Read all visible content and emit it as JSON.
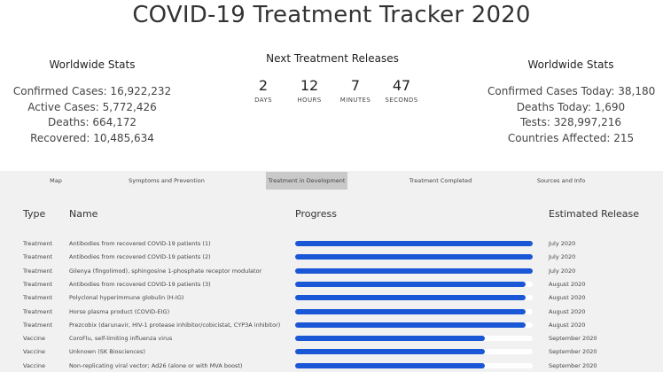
{
  "title": "COVID-19 Treatment Tracker 2020",
  "worldwide_left": {
    "heading": "Worldwide Stats",
    "lines": [
      "Confirmed Cases: 16,922,232",
      "Active Cases: 5,772,426",
      "Deaths: 664,172",
      "Recovered: 10,485,634"
    ]
  },
  "countdown": {
    "heading": "Next Treatment Releases",
    "units": [
      {
        "value": "2",
        "label": "DAYS"
      },
      {
        "value": "12",
        "label": "HOURS"
      },
      {
        "value": "7",
        "label": "MINUTES"
      },
      {
        "value": "47",
        "label": "SECONDS"
      }
    ]
  },
  "worldwide_right": {
    "heading": "Worldwide Stats",
    "lines": [
      "Confirmed Cases Today: 38,180",
      "Deaths Today: 1,690",
      "Tests: 328,997,216",
      "Countries Affected: 215"
    ]
  },
  "tabs": [
    "Map",
    "Symptoms and Prevention",
    "Treatment in Development",
    "Treatment Completed",
    "Sources and Info"
  ],
  "active_tab": "Treatment in Development",
  "table": {
    "headers": {
      "type": "Type",
      "name": "Name",
      "progress": "Progress",
      "release": "Estimated Release"
    },
    "rows": [
      {
        "type": "Treatment",
        "name": "Antibodies from recovered COVID-19 patients (1)",
        "progress": 1.0,
        "release": "July 2020"
      },
      {
        "type": "Treatment",
        "name": "Antibodies from recovered COVID-19 patients (2)",
        "progress": 1.0,
        "release": "July 2020"
      },
      {
        "type": "Treatment",
        "name": "Gilenya (fingolimod), sphingosine 1-phosphate receptor modulator",
        "progress": 1.0,
        "release": "July 2020"
      },
      {
        "type": "Treatment",
        "name": "Antibodies from recovered COVID-19 patients (3)",
        "progress": 0.97,
        "release": "August 2020"
      },
      {
        "type": "Treatment",
        "name": "Polyclonal hyperimmune globulin (H-IG)",
        "progress": 0.97,
        "release": "August 2020"
      },
      {
        "type": "Treatment",
        "name": "Horse plasma product (COVID-EIG)",
        "progress": 0.97,
        "release": "August 2020"
      },
      {
        "type": "Treatment",
        "name": "Prezcobix (darunavir, HIV-1 protease inhibitor/cobicistat, CYP3A inhibitor)",
        "progress": 0.97,
        "release": "August 2020"
      },
      {
        "type": "Vaccine",
        "name": "CoroFlu, self-limiting influenza virus",
        "progress": 0.8,
        "release": "September 2020"
      },
      {
        "type": "Vaccine",
        "name": "Unknown (SK Biosciences)",
        "progress": 0.8,
        "release": "September 2020"
      },
      {
        "type": "Vaccine",
        "name": "Non-replicating viral vector; Ad26 (alone or with MVA boost)",
        "progress": 0.8,
        "release": "September 2020"
      }
    ]
  },
  "colors": {
    "progress_fill": "#1a57d6",
    "active_tab_bg": "#c9c9c9",
    "lower_bg": "#f1f1f1"
  }
}
